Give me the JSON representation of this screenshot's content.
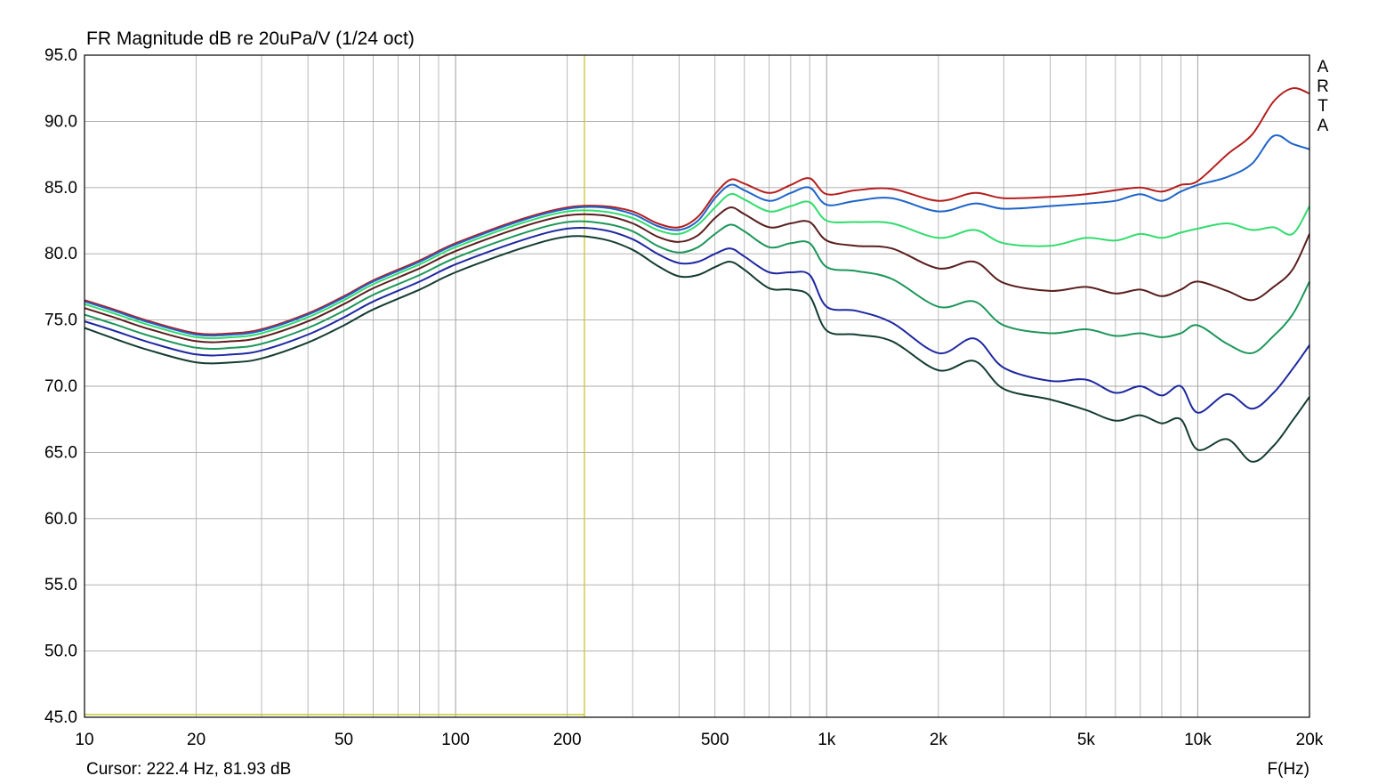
{
  "chart_data": {
    "type": "line",
    "title": "FR Magnitude dB re 20uPa/V (1/24 oct)",
    "xlabel": "F(Hz)",
    "ylabel": "",
    "x_scale": "log",
    "xlim": [
      10,
      20000
    ],
    "ylim": [
      45,
      95
    ],
    "grid": true,
    "legend": "none",
    "y_ticks": [
      "95.0",
      "90.0",
      "85.0",
      "80.0",
      "75.0",
      "70.0",
      "65.0",
      "60.0",
      "55.0",
      "50.0",
      "45.0"
    ],
    "x_ticks": [
      {
        "value": 10,
        "label": "10"
      },
      {
        "value": 20,
        "label": "20"
      },
      {
        "value": 50,
        "label": "50"
      },
      {
        "value": 100,
        "label": "100"
      },
      {
        "value": 200,
        "label": "200"
      },
      {
        "value": 500,
        "label": "500"
      },
      {
        "value": 1000,
        "label": "1k"
      },
      {
        "value": 2000,
        "label": "2k"
      },
      {
        "value": 5000,
        "label": "5k"
      },
      {
        "value": 10000,
        "label": "10k"
      },
      {
        "value": 20000,
        "label": "20k"
      }
    ],
    "x": [
      10,
      12,
      15,
      20,
      25,
      30,
      40,
      50,
      60,
      80,
      100,
      150,
      200,
      250,
      300,
      350,
      400,
      450,
      500,
      550,
      600,
      700,
      800,
      900,
      1000,
      1200,
      1500,
      2000,
      2500,
      3000,
      4000,
      5000,
      6000,
      7000,
      8000,
      9000,
      10000,
      12000,
      14000,
      16000,
      18000,
      20000
    ],
    "series": [
      {
        "color": "#b41e1e",
        "values": [
          76.5,
          75.8,
          74.9,
          74.0,
          74.0,
          74.3,
          75.5,
          76.8,
          78.0,
          79.5,
          80.8,
          82.6,
          83.5,
          83.6,
          83.2,
          82.3,
          82.0,
          82.8,
          84.5,
          85.6,
          85.3,
          84.6,
          85.2,
          85.7,
          84.5,
          84.8,
          84.9,
          84.0,
          84.6,
          84.2,
          84.3,
          84.5,
          84.8,
          85.0,
          84.7,
          85.2,
          85.5,
          87.5,
          89.0,
          91.5,
          92.5,
          92.1
        ]
      },
      {
        "color": "#1e64c8",
        "values": [
          76.4,
          75.7,
          74.8,
          73.9,
          73.9,
          74.2,
          75.4,
          76.7,
          77.9,
          79.4,
          80.7,
          82.5,
          83.4,
          83.5,
          83.0,
          82.1,
          81.8,
          82.5,
          84.2,
          85.2,
          84.8,
          84.0,
          84.6,
          85.0,
          83.7,
          84.0,
          84.2,
          83.2,
          83.8,
          83.4,
          83.6,
          83.8,
          84.0,
          84.5,
          84.0,
          84.7,
          85.2,
          85.8,
          86.8,
          88.9,
          88.3,
          87.9
        ]
      },
      {
        "color": "#32dc6e",
        "values": [
          76.2,
          75.5,
          74.6,
          73.7,
          73.7,
          74.0,
          75.2,
          76.5,
          77.7,
          79.2,
          80.5,
          82.3,
          83.2,
          83.2,
          82.7,
          81.8,
          81.5,
          82.2,
          83.5,
          84.5,
          84.1,
          83.2,
          83.6,
          83.9,
          82.5,
          82.4,
          82.3,
          81.2,
          81.8,
          80.8,
          80.6,
          81.2,
          81.0,
          81.5,
          81.2,
          81.6,
          81.9,
          82.3,
          81.8,
          82.0,
          81.5,
          83.6
        ]
      },
      {
        "color": "#5a1e1e",
        "values": [
          75.9,
          75.2,
          74.3,
          73.4,
          73.4,
          73.7,
          74.9,
          76.2,
          77.4,
          78.9,
          80.2,
          82.0,
          82.9,
          82.9,
          82.3,
          81.3,
          80.9,
          81.4,
          82.7,
          83.5,
          83.0,
          82.0,
          82.3,
          82.4,
          81.0,
          80.6,
          80.4,
          78.9,
          79.4,
          77.8,
          77.2,
          77.5,
          77.0,
          77.3,
          76.8,
          77.3,
          77.9,
          77.2,
          76.5,
          77.5,
          78.8,
          81.5
        ]
      },
      {
        "color": "#1e965a",
        "values": [
          75.4,
          74.7,
          73.8,
          72.9,
          72.9,
          73.2,
          74.4,
          75.7,
          76.9,
          78.4,
          79.7,
          81.5,
          82.4,
          82.3,
          81.7,
          80.6,
          80.1,
          80.5,
          81.5,
          82.2,
          81.7,
          80.5,
          80.8,
          80.8,
          79.0,
          78.7,
          78.1,
          76.0,
          76.4,
          74.6,
          74.0,
          74.3,
          73.8,
          74.0,
          73.7,
          74.0,
          74.6,
          73.2,
          72.5,
          73.8,
          75.4,
          77.9
        ]
      },
      {
        "color": "#1e28a0",
        "values": [
          74.9,
          74.2,
          73.3,
          72.4,
          72.4,
          72.7,
          73.9,
          75.2,
          76.4,
          77.9,
          79.2,
          81.0,
          81.9,
          81.8,
          81.1,
          80.0,
          79.3,
          79.4,
          80.0,
          80.4,
          79.8,
          78.6,
          78.6,
          78.4,
          76.0,
          75.7,
          74.8,
          72.5,
          73.6,
          71.4,
          70.4,
          70.5,
          69.5,
          70.0,
          69.3,
          70.0,
          68.0,
          69.4,
          68.3,
          69.5,
          71.3,
          73.1
        ]
      },
      {
        "color": "#143c32",
        "values": [
          74.4,
          73.6,
          72.7,
          71.8,
          71.8,
          72.1,
          73.3,
          74.6,
          75.8,
          77.3,
          78.6,
          80.4,
          81.3,
          81.1,
          80.3,
          79.1,
          78.3,
          78.4,
          79.0,
          79.4,
          78.8,
          77.4,
          77.3,
          76.8,
          74.2,
          73.9,
          73.4,
          71.2,
          71.9,
          69.8,
          69.0,
          68.2,
          67.4,
          67.8,
          67.2,
          67.5,
          65.2,
          66.0,
          64.3,
          65.5,
          67.4,
          69.2
        ]
      }
    ],
    "cursor": {
      "x": 222.4,
      "y": 81.93,
      "label": "Cursor: 222.4 Hz, 81.93 dB"
    },
    "watermark": [
      "A",
      "R",
      "T",
      "A"
    ]
  },
  "colors": {
    "background": "#ffffff",
    "grid": "#a8a8a8",
    "frame": "#000000",
    "cursor": "#c8c832"
  }
}
